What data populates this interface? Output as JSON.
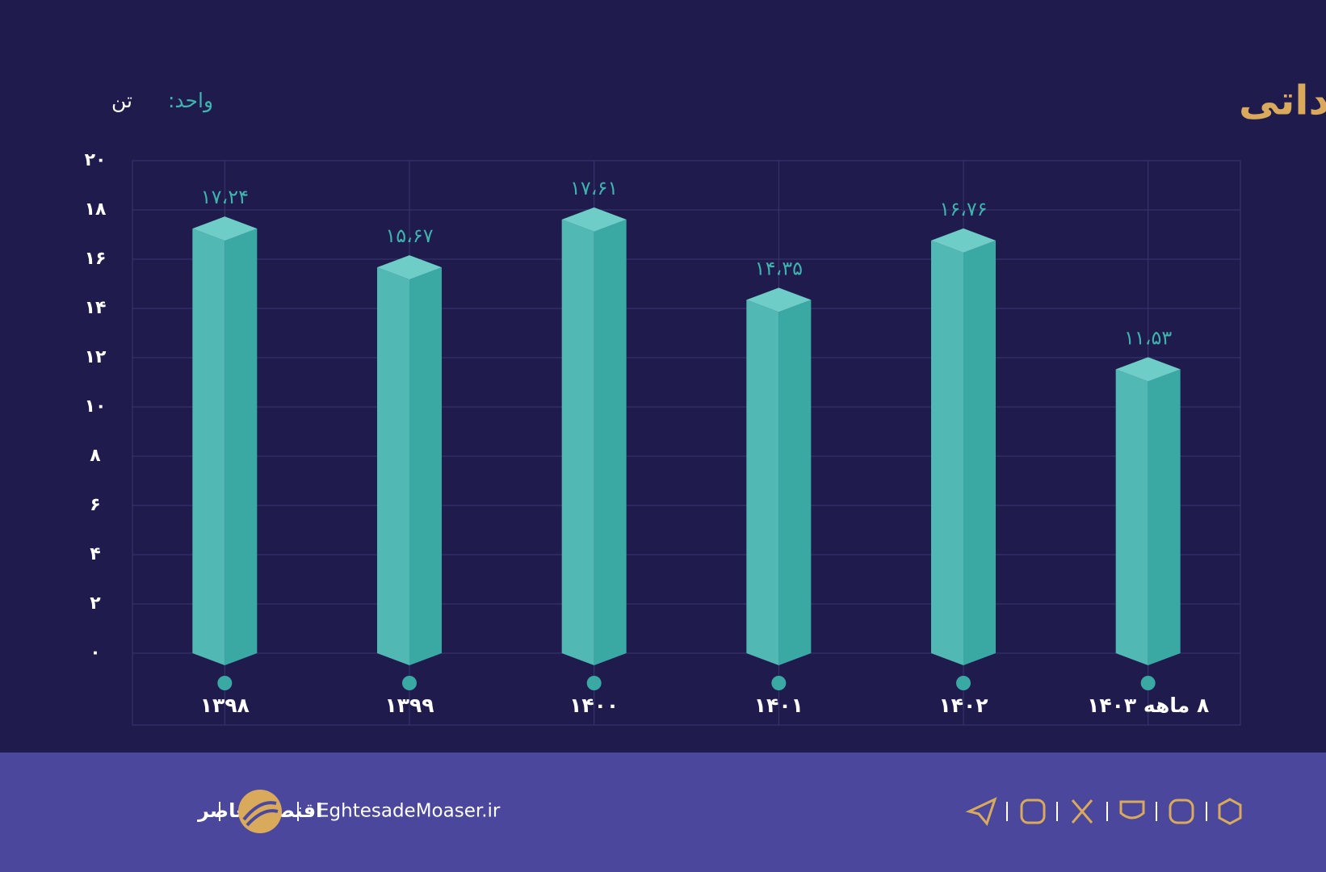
{
  "chart_data": {
    "type": "bar3d",
    "title": "وزن نهاده‌های دام و طیور وارداتی",
    "unit_label": "واحد:",
    "unit": "تن",
    "categories": [
      "۱۳۹۸",
      "۱۳۹۹",
      "۱۴۰۰",
      "۱۴۰۱",
      "۱۴۰۲",
      "۸ ماهه ۱۴۰۳"
    ],
    "values": [
      17.24,
      15.67,
      17.61,
      14.35,
      16.76,
      11.53
    ],
    "value_labels": [
      "۱۷،۲۴",
      "۱۵،۶۷",
      "۱۷،۶۱",
      "۱۴،۳۵",
      "۱۶،۷۶",
      "۱۱،۵۳"
    ],
    "color": "#3aa8a3",
    "ylim": [
      0,
      20
    ],
    "yticks": [
      {
        "value": 0,
        "label": "۰"
      },
      {
        "value": 2,
        "label": "۲"
      },
      {
        "value": 4,
        "label": "۴"
      },
      {
        "value": 6,
        "label": "۶"
      },
      {
        "value": 8,
        "label": "۸"
      },
      {
        "value": 10,
        "label": "۱۰"
      },
      {
        "value": 12,
        "label": "۱۲"
      },
      {
        "value": 14,
        "label": "۱۴"
      },
      {
        "value": 16,
        "label": "۱۶"
      },
      {
        "value": 18,
        "label": "۱۸"
      },
      {
        "value": 20,
        "label": "۲۰"
      }
    ],
    "grid": true
  },
  "footer": {
    "brand": "اقتصادمعاصر",
    "website": "EghtesadeMoaser.ir"
  }
}
